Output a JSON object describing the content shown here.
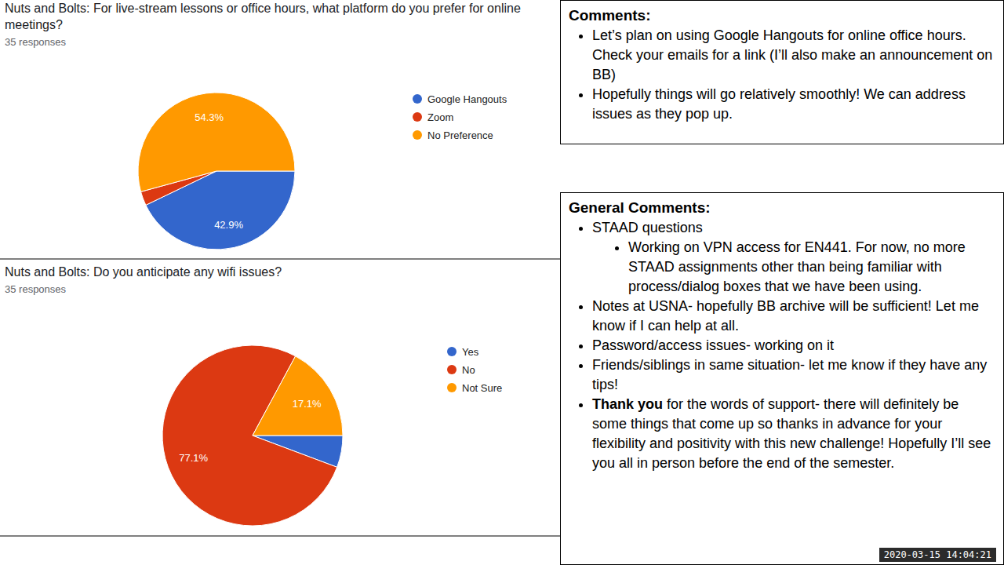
{
  "chart_data": [
    {
      "type": "pie",
      "title": "Nuts and Bolts: For live-stream lessons or office hours, what platform do you prefer for online meetings?",
      "subtitle": "35 responses",
      "categories": [
        "Google Hangouts",
        "Zoom",
        "No Preference"
      ],
      "values": [
        42.9,
        2.9,
        54.3
      ],
      "value_labels": [
        "42.9%",
        null,
        "54.3%"
      ],
      "colors": [
        "#3366cc",
        "#dc3912",
        "#ff9900"
      ],
      "data_labels": true,
      "legend": "right"
    },
    {
      "type": "pie",
      "title": "Nuts and Bolts: Do you anticipate any wifi issues?",
      "subtitle": "35 responses",
      "categories": [
        "Yes",
        "No",
        "Not Sure"
      ],
      "values": [
        5.7,
        77.1,
        17.1
      ],
      "value_labels": [
        null,
        "77.1%",
        "17.1%"
      ],
      "colors": [
        "#3366cc",
        "#dc3912",
        "#ff9900"
      ],
      "data_labels": true,
      "legend": "right"
    }
  ],
  "comments": {
    "heading": "Comments:",
    "items": [
      {
        "text": "Let’s plan on using Google Hangouts for online office hours. Check your emails for a link (I’ll also make an announcement on BB)"
      },
      {
        "text": "Hopefully things will go relatively smoothly! We can address issues as they pop up."
      }
    ]
  },
  "general_comments": {
    "heading": "General Comments:",
    "items": [
      {
        "text": "STAAD questions",
        "subitems": [
          "Working on VPN access for EN441. For now, no more STAAD assignments other than being familiar with process/dialog boxes that we have been using."
        ]
      },
      {
        "text": "Notes at USNA- hopefully BB archive will be sufficient! Let me know if I can help at all."
      },
      {
        "text": "Password/access issues- working on it"
      },
      {
        "text": "Friends/siblings in same situation- let me know if they have any tips!"
      },
      {
        "bold": "Thank you",
        "text": " for the words of support- there will definitely be some things that come up so thanks in advance for your flexibility and positivity with this new challenge! Hopefully I’ll see you all in person before the end of the semester."
      }
    ]
  },
  "timestamp": "2020-03-15 14:04:21"
}
